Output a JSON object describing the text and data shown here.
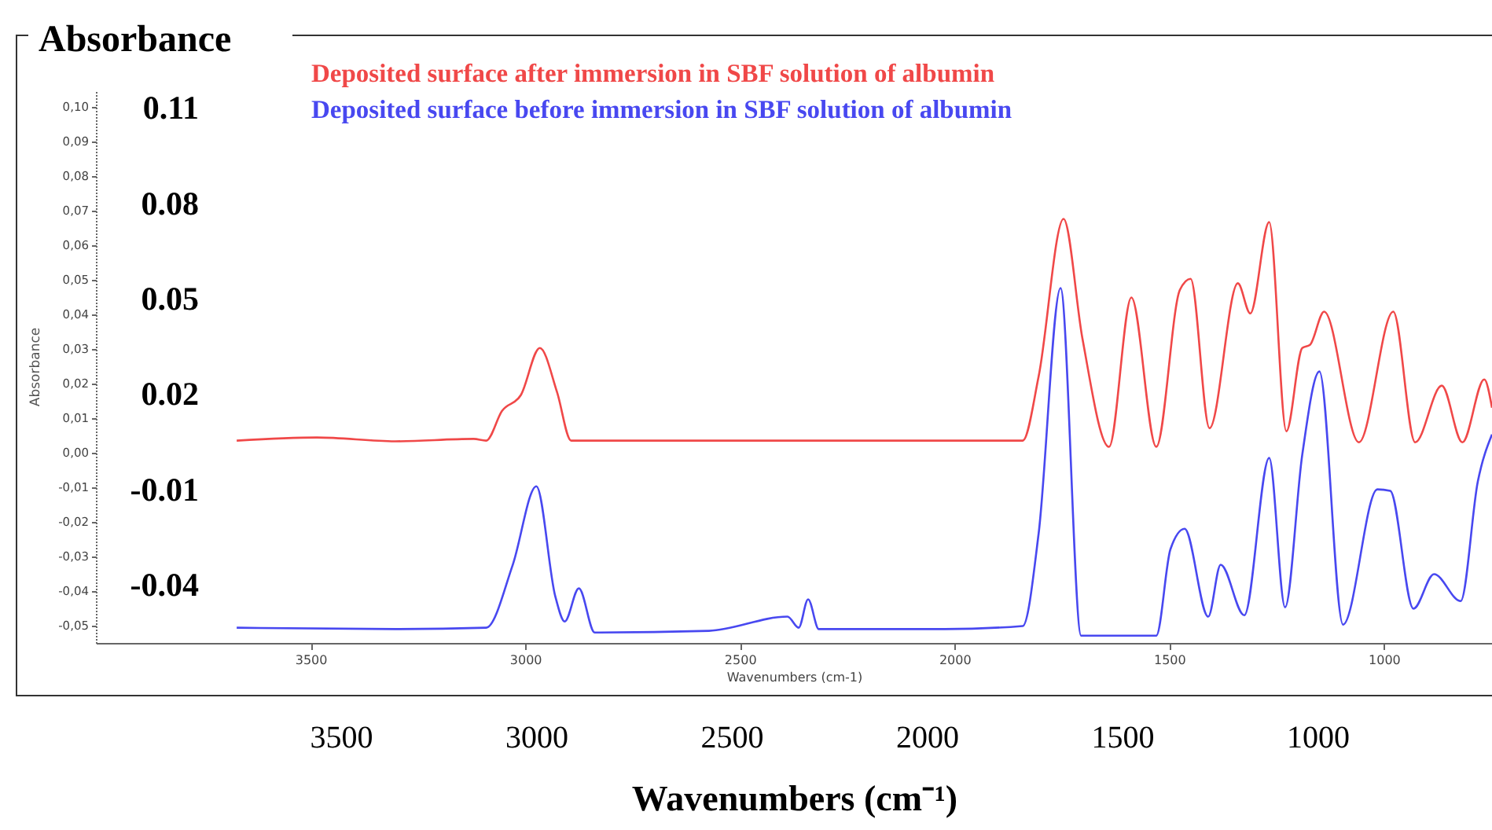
{
  "chart_data": {
    "type": "line",
    "xlabel": "Wavenumbers (cm-1)",
    "ylabel": "Absorbance",
    "x2label": "Wavenumbers (cm⁻¹)",
    "y2label": "Absorbance",
    "legend": "top",
    "xlim": [
      4000,
      748
    ],
    "xticks": [
      3500,
      3000,
      2500,
      2000,
      1500,
      1000
    ],
    "ylim": [
      -0.055,
      0.105
    ],
    "yticks": [
      {
        "value": 0.1,
        "label": "0,10"
      },
      {
        "value": 0.09,
        "label": "0,09"
      },
      {
        "value": 0.08,
        "label": "0,08"
      },
      {
        "value": 0.07,
        "label": "0,07"
      },
      {
        "value": 0.06,
        "label": "0,06"
      },
      {
        "value": 0.05,
        "label": "0,05"
      },
      {
        "value": 0.04,
        "label": "0,04"
      },
      {
        "value": 0.03,
        "label": "0,03"
      },
      {
        "value": 0.02,
        "label": "0,02"
      },
      {
        "value": 0.01,
        "label": "0,01"
      },
      {
        "value": 0,
        "label": "0,00"
      },
      {
        "value": -0.01,
        "label": "-0,01"
      },
      {
        "value": -0.02,
        "label": "-0,02"
      },
      {
        "value": -0.03,
        "label": "-0,03"
      },
      {
        "value": -0.04,
        "label": "-0,04"
      },
      {
        "value": -0.05,
        "label": "-0,05"
      }
    ],
    "x2lim": [
      4127,
      553
    ],
    "x2ticks": [
      3500,
      3000,
      2500,
      2000,
      1500,
      1000
    ],
    "y2lim": [
      -0.058,
      0.116
    ],
    "y2ticks": [
      0.11,
      0.08,
      0.05,
      0.02,
      -0.01,
      -0.04
    ],
    "series": [
      {
        "name": "Deposited surface after immersion in SBF solution of albumin",
        "color": "#f04848",
        "x": [
          3672,
          3485,
          3303,
          3120,
          3091,
          3054,
          3010,
          2966,
          2926,
          2893,
          2572,
          2206,
          1841,
          1804,
          1746,
          1702,
          1640,
          1588,
          1530,
          1475,
          1450,
          1406,
          1340,
          1311,
          1267,
          1227,
          1190,
          1172,
          1139,
          1058,
          978,
          927,
          865,
          817,
          766,
          748
        ],
        "values": [
          0.0035,
          0.0044,
          0.0033,
          0.004,
          0.0035,
          0.0121,
          0.0167,
          0.0303,
          0.0176,
          0.0035,
          0.0035,
          0.0035,
          0.0035,
          0.0221,
          0.0676,
          0.033,
          0.0017,
          0.0449,
          0.0017,
          0.0471,
          0.0503,
          0.0071,
          0.049,
          0.0403,
          0.0667,
          0.0062,
          0.0303,
          0.0312,
          0.0408,
          0.003,
          0.0408,
          0.003,
          0.0194,
          0.003,
          0.0212,
          0.013
        ]
      },
      {
        "name": "Deposited surface before immersion in SBF solution of albumin",
        "color": "#4848f0",
        "x": [
          3672,
          3303,
          3091,
          3029,
          2974,
          2930,
          2908,
          2875,
          2838,
          2572,
          2389,
          2363,
          2341,
          2316,
          2023,
          1841,
          1804,
          1753,
          1705,
          1530,
          1497,
          1464,
          1409,
          1380,
          1325,
          1267,
          1230,
          1190,
          1150,
          1095,
          1015,
          985,
          931,
          883,
          821,
          781,
          748
        ],
        "values": [
          -0.0506,
          -0.051,
          -0.0506,
          -0.0324,
          -0.0097,
          -0.0415,
          -0.0488,
          -0.0392,
          -0.052,
          -0.0515,
          -0.0474,
          -0.0506,
          -0.0424,
          -0.051,
          -0.051,
          -0.0501,
          -0.0233,
          0.0476,
          -0.0529,
          -0.0529,
          -0.0279,
          -0.022,
          -0.0474,
          -0.0324,
          -0.047,
          -0.0015,
          -0.0447,
          -0.0006,
          0.0235,
          -0.0497,
          -0.0106,
          -0.011,
          -0.0451,
          -0.0351,
          -0.0429,
          -0.0083,
          0.0053
        ]
      }
    ]
  }
}
